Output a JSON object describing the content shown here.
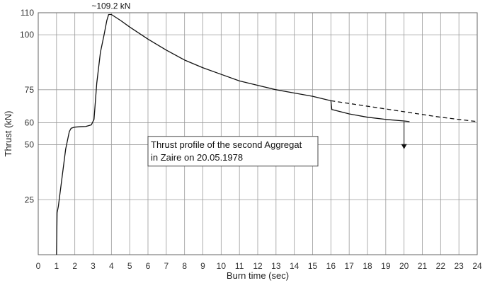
{
  "chart_data": {
    "type": "line",
    "title": "",
    "xlabel": "Burn time (sec)",
    "ylabel": "Thrust (kN)",
    "xlim": [
      0,
      24
    ],
    "ylim": [
      0,
      110
    ],
    "x_ticks": [
      0,
      1,
      2,
      3,
      4,
      5,
      6,
      7,
      8,
      9,
      10,
      11,
      12,
      13,
      14,
      15,
      16,
      17,
      18,
      19,
      20,
      21,
      22,
      23,
      24
    ],
    "y_ticks": [
      25,
      50,
      60,
      75,
      100,
      110
    ],
    "grid": true,
    "series": [
      {
        "style": "solid",
        "x": [
          1.0,
          1.03,
          1.1,
          1.3,
          1.5,
          1.7,
          1.8,
          2.0,
          2.3,
          2.6,
          2.9,
          3.05,
          3.2,
          3.4,
          3.6,
          3.75,
          3.85,
          4.0,
          4.5,
          5.0,
          6.0,
          7.0,
          8.0,
          9.0,
          10.0,
          11.0,
          12.0,
          13.0,
          14.0,
          15.0,
          16.0,
          16.05,
          17.0,
          18.0,
          19.0,
          20.0,
          20.3
        ],
        "y": [
          0.0,
          19.0,
          22.0,
          35.0,
          48.0,
          56.0,
          57.5,
          58.0,
          58.2,
          58.3,
          59.0,
          61.5,
          78.0,
          92.0,
          100.0,
          106.5,
          109.2,
          109.2,
          106.5,
          103.5,
          98.0,
          93.0,
          88.5,
          85.0,
          82.0,
          79.0,
          77.0,
          75.0,
          73.5,
          72.0,
          70.0,
          66.0,
          64.0,
          62.5,
          61.5,
          60.8,
          60.5
        ]
      },
      {
        "style": "dashed",
        "x": [
          16.0,
          18.0,
          20.0,
          22.0,
          24.0
        ],
        "y": [
          70.0,
          67.5,
          65.0,
          62.5,
          60.5
        ]
      },
      {
        "style": "marker-drop",
        "x": [
          20.0,
          20.0
        ],
        "y": [
          60.5,
          48.0
        ]
      }
    ],
    "annotations": {
      "peak": {
        "text": "~109.2 kN",
        "x": 4.0,
        "y": 109.2
      },
      "note_line1": "Thrust profile of the second Aggregat",
      "note_line2": "in Zaire on 20.05.1978"
    }
  }
}
